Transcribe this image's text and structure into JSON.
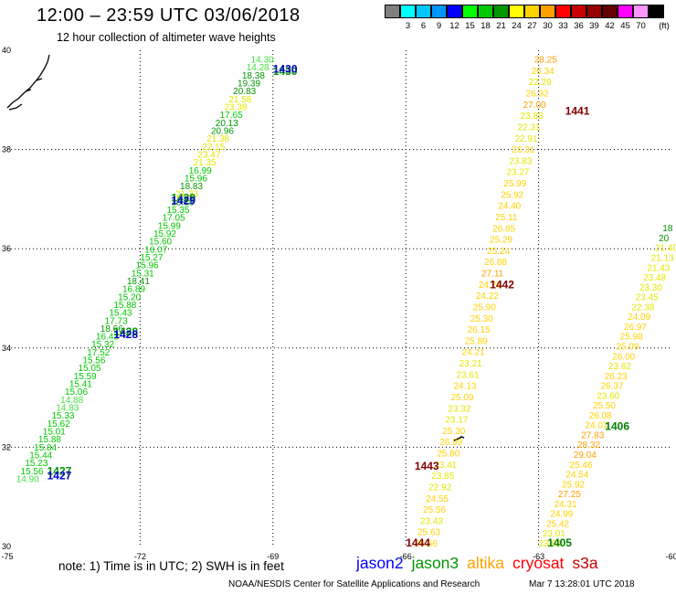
{
  "header": {
    "title": "12:00 – 23:59 UTC 03/06/2018",
    "subtitle": "12 hour collection of altimeter wave heights"
  },
  "color_scale": {
    "unit_label": "(ft)",
    "entries": [
      {
        "label": "",
        "color": "#7f7f7f"
      },
      {
        "label": "3",
        "color": "#00ffff"
      },
      {
        "label": "6",
        "color": "#00c8ff"
      },
      {
        "label": "9",
        "color": "#0096ff"
      },
      {
        "label": "12",
        "color": "#0000ff"
      },
      {
        "label": "15",
        "color": "#00ff00"
      },
      {
        "label": "18",
        "color": "#00c800"
      },
      {
        "label": "21",
        "color": "#009600"
      },
      {
        "label": "24",
        "color": "#ffff00"
      },
      {
        "label": "27",
        "color": "#ffd200"
      },
      {
        "label": "30",
        "color": "#ffa000"
      },
      {
        "label": "33",
        "color": "#ff0000"
      },
      {
        "label": "36",
        "color": "#c80000"
      },
      {
        "label": "39",
        "color": "#960000"
      },
      {
        "label": "42",
        "color": "#640000"
      },
      {
        "label": "45",
        "color": "#ff00ff"
      },
      {
        "label": "70",
        "color": "#ff96ff"
      },
      {
        "label": "",
        "color": "#000000"
      }
    ]
  },
  "axes": {
    "lon_ticks": [
      "-75",
      "-72",
      "-69",
      "-66",
      "-63",
      "-60"
    ],
    "lat_ticks": [
      "30",
      "32",
      "34",
      "36",
      "38",
      "40"
    ],
    "lon_range": [
      -75,
      -60
    ],
    "lat_range": [
      30,
      40
    ]
  },
  "tracks": [
    {
      "satellite": "jason3",
      "passes": [
        {
          "label": "1427",
          "time_lon": -74.1,
          "time_lat": 31.45,
          "color": "#009600"
        },
        {
          "label": "1428",
          "time_lon": -72.6,
          "time_lat": 34.25,
          "color": "#009600"
        },
        {
          "label": "1429",
          "time_lon": -71.3,
          "time_lat": 36.95,
          "color": "#009600"
        },
        {
          "label": "1430",
          "time_lon": -69.0,
          "time_lat": 39.5,
          "color": "#009600"
        }
      ],
      "start": [
        -74.8,
        31.3
      ],
      "end": [
        -69.5,
        39.75
      ],
      "values": [
        "14.90",
        "15.56",
        "15.23",
        "15.44",
        "15.84",
        "15.88",
        "15.01",
        "15.62",
        "15.33",
        "14.83",
        "14.88",
        "15.06",
        "15.41",
        "15.59",
        "15.05",
        "15.56",
        "17.52",
        "15.32",
        "16.43",
        "18.66",
        "17.73",
        "15.43",
        "15.88",
        "15.20",
        "16.89",
        "18.41",
        "15.31",
        "15.96",
        "15.27",
        "16.07",
        "15.60",
        "15.92",
        "15.99",
        "17.05",
        "15.35",
        "18.18",
        "21.33",
        "18.83",
        "15.96",
        "16.99",
        "21.35",
        "23.47",
        "22.15",
        "21.38",
        "20.96",
        "20.13",
        "17.65",
        "23.38",
        "21.58",
        "20.83",
        "19.39",
        "18.38",
        "14.28",
        "14.30"
      ]
    },
    {
      "satellite": "jason2",
      "passes": [
        {
          "label": "1427",
          "time_lon": -74.1,
          "time_lat": 31.35,
          "color": "#0000c8"
        },
        {
          "label": "1428",
          "time_lon": -72.6,
          "time_lat": 34.2,
          "color": "#0000c8"
        },
        {
          "label": "1429",
          "time_lon": -71.3,
          "time_lat": 36.9,
          "color": "#0000c8"
        },
        {
          "label": "1430",
          "time_lon": -69.0,
          "time_lat": 39.55,
          "color": "#0000c8"
        }
      ]
    },
    {
      "satellite": "altika",
      "passes": [
        {
          "label": "1441",
          "time_lon": -62.4,
          "time_lat": 38.7,
          "color": "#800000"
        },
        {
          "label": "1442",
          "time_lon": -64.1,
          "time_lat": 35.2,
          "color": "#800000"
        },
        {
          "label": "1443",
          "time_lon": -65.8,
          "time_lat": 31.55,
          "color": "#800000"
        },
        {
          "label": "1444",
          "time_lon": -66.0,
          "time_lat": 30.0,
          "color": "#800000"
        }
      ],
      "start": [
        -65.8,
        30.0
      ],
      "end": [
        -63.1,
        39.75
      ],
      "values": [
        "24.66",
        "25.63",
        "23.43",
        "25.56",
        "24.55",
        "22.92",
        "23.85",
        "23.41",
        "25.80",
        "26.99",
        "25.30",
        "23.17",
        "23.32",
        "25.09",
        "24.13",
        "23.61",
        "23.21",
        "24.21",
        "25.89",
        "26.15",
        "25.30",
        "25.90",
        "24.22",
        "24.78",
        "27.11",
        "26.88",
        "25.24",
        "25.29",
        "26.85",
        "25.11",
        "24.40",
        "25.92",
        "25.99",
        "23.27",
        "23.83",
        "26.31",
        "22.91",
        "22.31",
        "23.83",
        "27.00",
        "26.32",
        "22.29",
        "26.34",
        "28.25"
      ]
    },
    {
      "satellite": "altika",
      "passes": [
        {
          "label": "1405",
          "time_lon": -62.8,
          "time_lat": 30.0,
          "color": "#008000"
        },
        {
          "label": "1406",
          "time_lon": -61.5,
          "time_lat": 32.35,
          "color": "#008000"
        }
      ],
      "start": [
        -63.0,
        30.0
      ],
      "end": [
        -60.2,
        36.35
      ],
      "values": [
        "23.64",
        "23.01",
        "25.42",
        "24.99",
        "24.31",
        "27.25",
        "25.92",
        "24.54",
        "25.46",
        "29.04",
        "28.32",
        "27.83",
        "24.01",
        "26.08",
        "25.50",
        "23.60",
        "26.37",
        "26.23",
        "23.62",
        "26.00",
        "25.09",
        "25.98",
        "26.97",
        "24.09",
        "22.38",
        "23.45",
        "23.30",
        "23.48",
        "21.43",
        "21.13",
        "21.40",
        "20",
        "18"
      ]
    }
  ],
  "legend": [
    {
      "label": "jason2",
      "color": "#0000ff"
    },
    {
      "label": "jason3",
      "color": "#009600"
    },
    {
      "label": "altika",
      "color": "#ffa000"
    },
    {
      "label": "cryosat",
      "color": "#ff0000"
    },
    {
      "label": "s3a",
      "color": "#c80000"
    }
  ],
  "footer": {
    "note": "note: 1) Time is in UTC; 2) SWH is in feet",
    "credit": "NOAA/NESDIS Center for Satellite Applications and Research",
    "generated": "Mar  7 13:28:01 UTC 2018"
  }
}
